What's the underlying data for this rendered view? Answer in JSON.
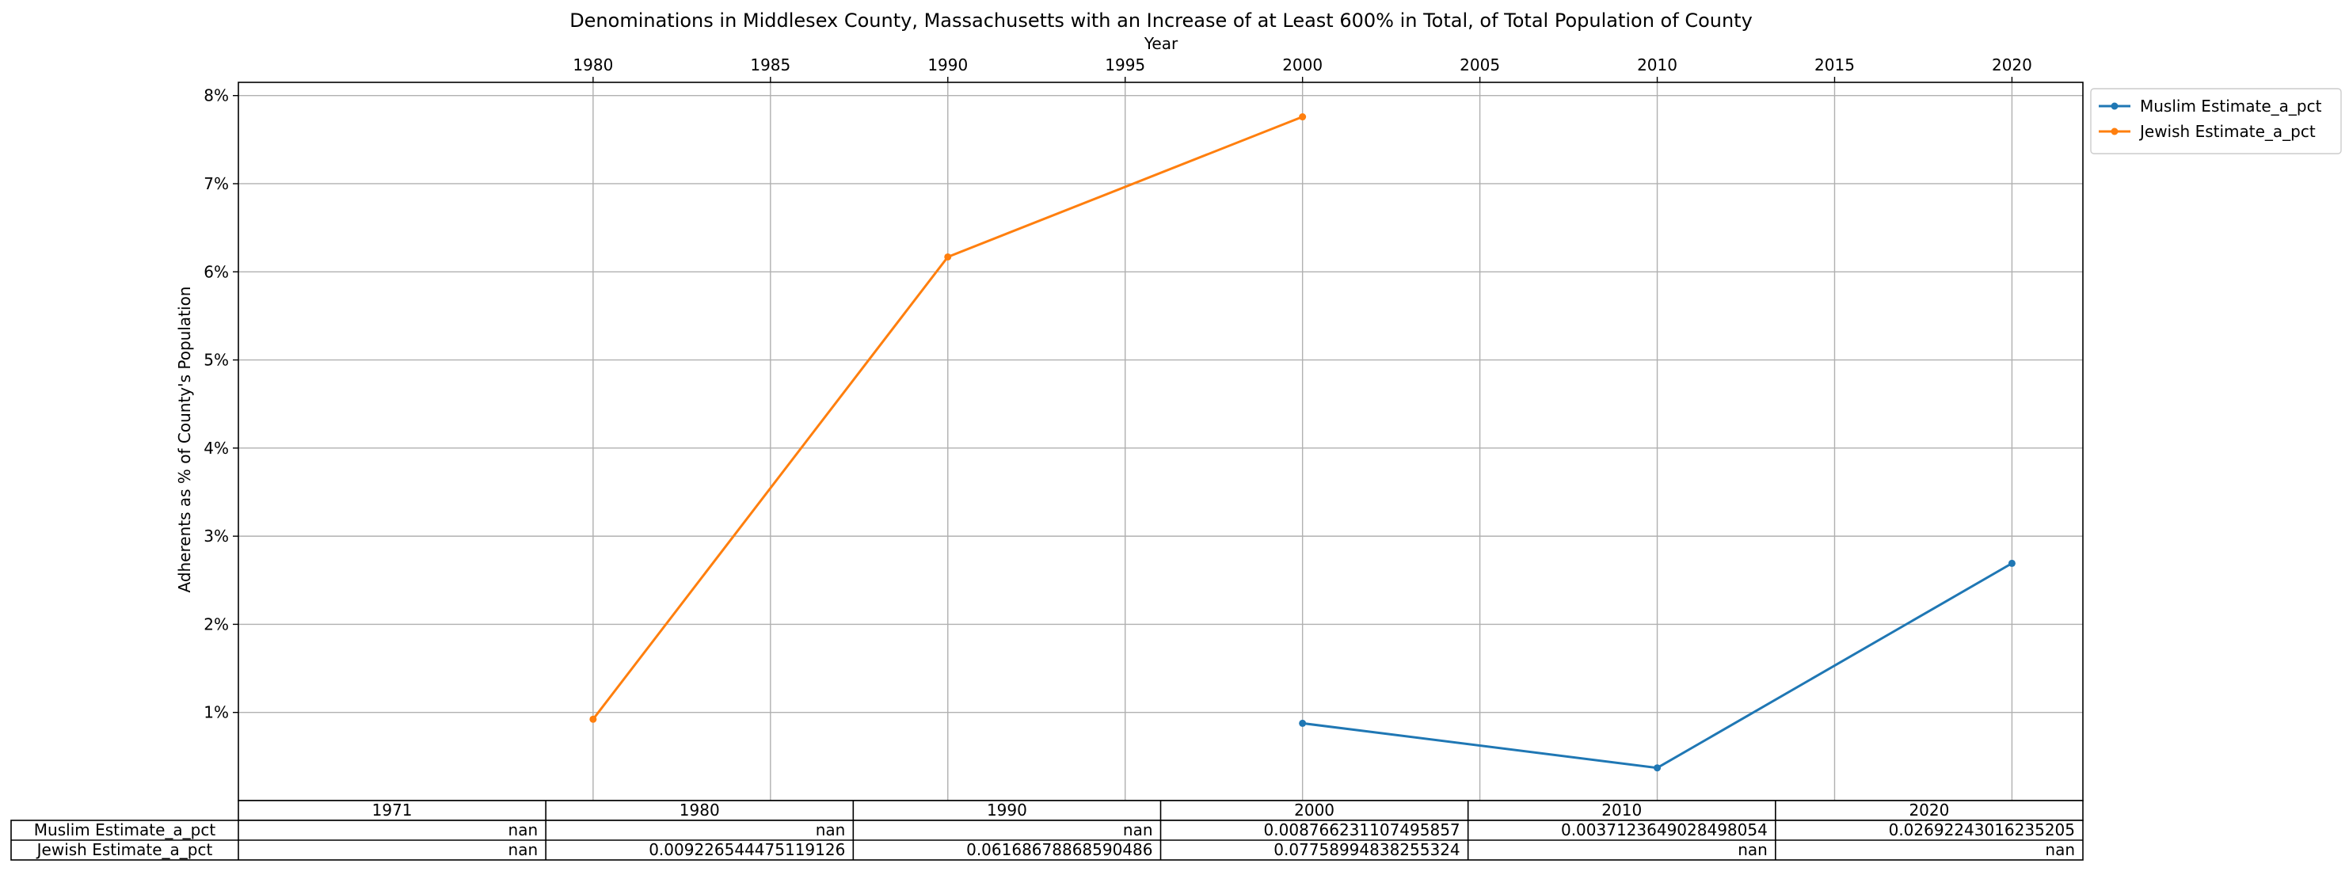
{
  "chart_data": {
    "type": "line",
    "title": "Denominations in Middlesex County, Massachusetts with an Increase of at Least 600% in Total, of Total Population of County",
    "xlabel": "Year",
    "ylabel": "Adherents as % of County's Population",
    "xlim": [
      1970,
      2022
    ],
    "ylim": [
      0,
      8.15
    ],
    "x_ticks": [
      1980,
      1985,
      1990,
      1995,
      2000,
      2005,
      2010,
      2015,
      2020
    ],
    "x_tick_labels": [
      "1980",
      "1985",
      "1990",
      "1995",
      "2000",
      "2005",
      "2010",
      "2015",
      "2020"
    ],
    "y_ticks": [
      1,
      2,
      3,
      4,
      5,
      6,
      7,
      8
    ],
    "y_tick_labels": [
      "1%",
      "2%",
      "3%",
      "4%",
      "5%",
      "6%",
      "7%",
      "8%"
    ],
    "grid": true,
    "legend_position": "outside-top-right",
    "series": [
      {
        "name": "Muslim Estimate_a_pct",
        "color": "#1f77b4",
        "points": [
          [
            2000,
            0.877
          ],
          [
            2010,
            0.371
          ],
          [
            2020,
            2.692
          ]
        ]
      },
      {
        "name": "Jewish Estimate_a_pct",
        "color": "#ff7f0e",
        "points": [
          [
            1980,
            0.923
          ],
          [
            1990,
            6.169
          ],
          [
            2000,
            7.759
          ]
        ]
      }
    ],
    "table": {
      "columns": [
        "1971",
        "1980",
        "1990",
        "2000",
        "2010",
        "2020"
      ],
      "rows": [
        {
          "label": "Muslim Estimate_a_pct",
          "cells": [
            "nan",
            "nan",
            "nan",
            "0.008766231107495857",
            "0.0037123649028498054",
            "0.02692243016235205"
          ]
        },
        {
          "label": "Jewish Estimate_a_pct",
          "cells": [
            "nan",
            "0.009226544475119126",
            "0.06168678868590486",
            "0.07758994838255324",
            "nan",
            "nan"
          ]
        }
      ]
    }
  }
}
